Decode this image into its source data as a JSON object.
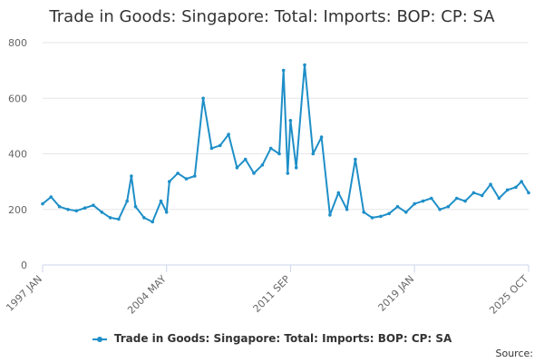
{
  "chart_data": {
    "type": "line",
    "title": "Trade in Goods: Singapore: Total: Imports: BOP: CP: SA",
    "xlabel": "",
    "ylabel": "",
    "ylim": [
      0,
      800
    ],
    "y_ticks": [
      0,
      200,
      400,
      600,
      800
    ],
    "x_ticks": [
      "1997 JAN",
      "2004 MAY",
      "2011 SEP",
      "2019 JAN",
      "2025 OCT"
    ],
    "x_range": [
      "1997-01",
      "2025-10"
    ],
    "grid": true,
    "legend": "bottom-center",
    "series": [
      {
        "name": "Trade in Goods: Singapore: Total: Imports: BOP: CP: SA",
        "color": "#1f8fc8",
        "x": [
          "1997-01",
          "1997-07",
          "1998-01",
          "1998-07",
          "1999-01",
          "1999-07",
          "2000-01",
          "2000-07",
          "2001-01",
          "2001-07",
          "2002-01",
          "2002-04",
          "2002-07",
          "2003-01",
          "2003-07",
          "2004-01",
          "2004-05",
          "2004-07",
          "2005-01",
          "2005-07",
          "2006-01",
          "2006-07",
          "2007-01",
          "2007-07",
          "2008-01",
          "2008-07",
          "2009-01",
          "2009-07",
          "2010-01",
          "2010-07",
          "2011-01",
          "2011-04",
          "2011-07",
          "2011-09",
          "2012-01",
          "2012-07",
          "2013-01",
          "2013-07",
          "2014-01",
          "2014-07",
          "2015-01",
          "2015-07",
          "2016-01",
          "2016-07",
          "2017-01",
          "2017-07",
          "2018-01",
          "2018-07",
          "2019-01",
          "2019-07",
          "2020-01",
          "2020-07",
          "2021-01",
          "2021-07",
          "2022-01",
          "2022-07",
          "2023-01",
          "2023-07",
          "2024-01",
          "2024-07",
          "2025-01",
          "2025-05",
          "2025-10"
        ],
        "values": [
          220,
          245,
          210,
          200,
          195,
          205,
          215,
          190,
          170,
          165,
          230,
          320,
          210,
          170,
          155,
          230,
          190,
          300,
          330,
          310,
          320,
          600,
          420,
          430,
          470,
          350,
          380,
          330,
          360,
          420,
          400,
          700,
          330,
          520,
          350,
          720,
          400,
          460,
          180,
          260,
          200,
          380,
          190,
          170,
          175,
          185,
          210,
          190,
          220,
          230,
          240,
          200,
          210,
          240,
          230,
          260,
          250,
          290,
          240,
          270,
          280,
          300,
          260
        ]
      }
    ]
  },
  "source_label": "Source:"
}
